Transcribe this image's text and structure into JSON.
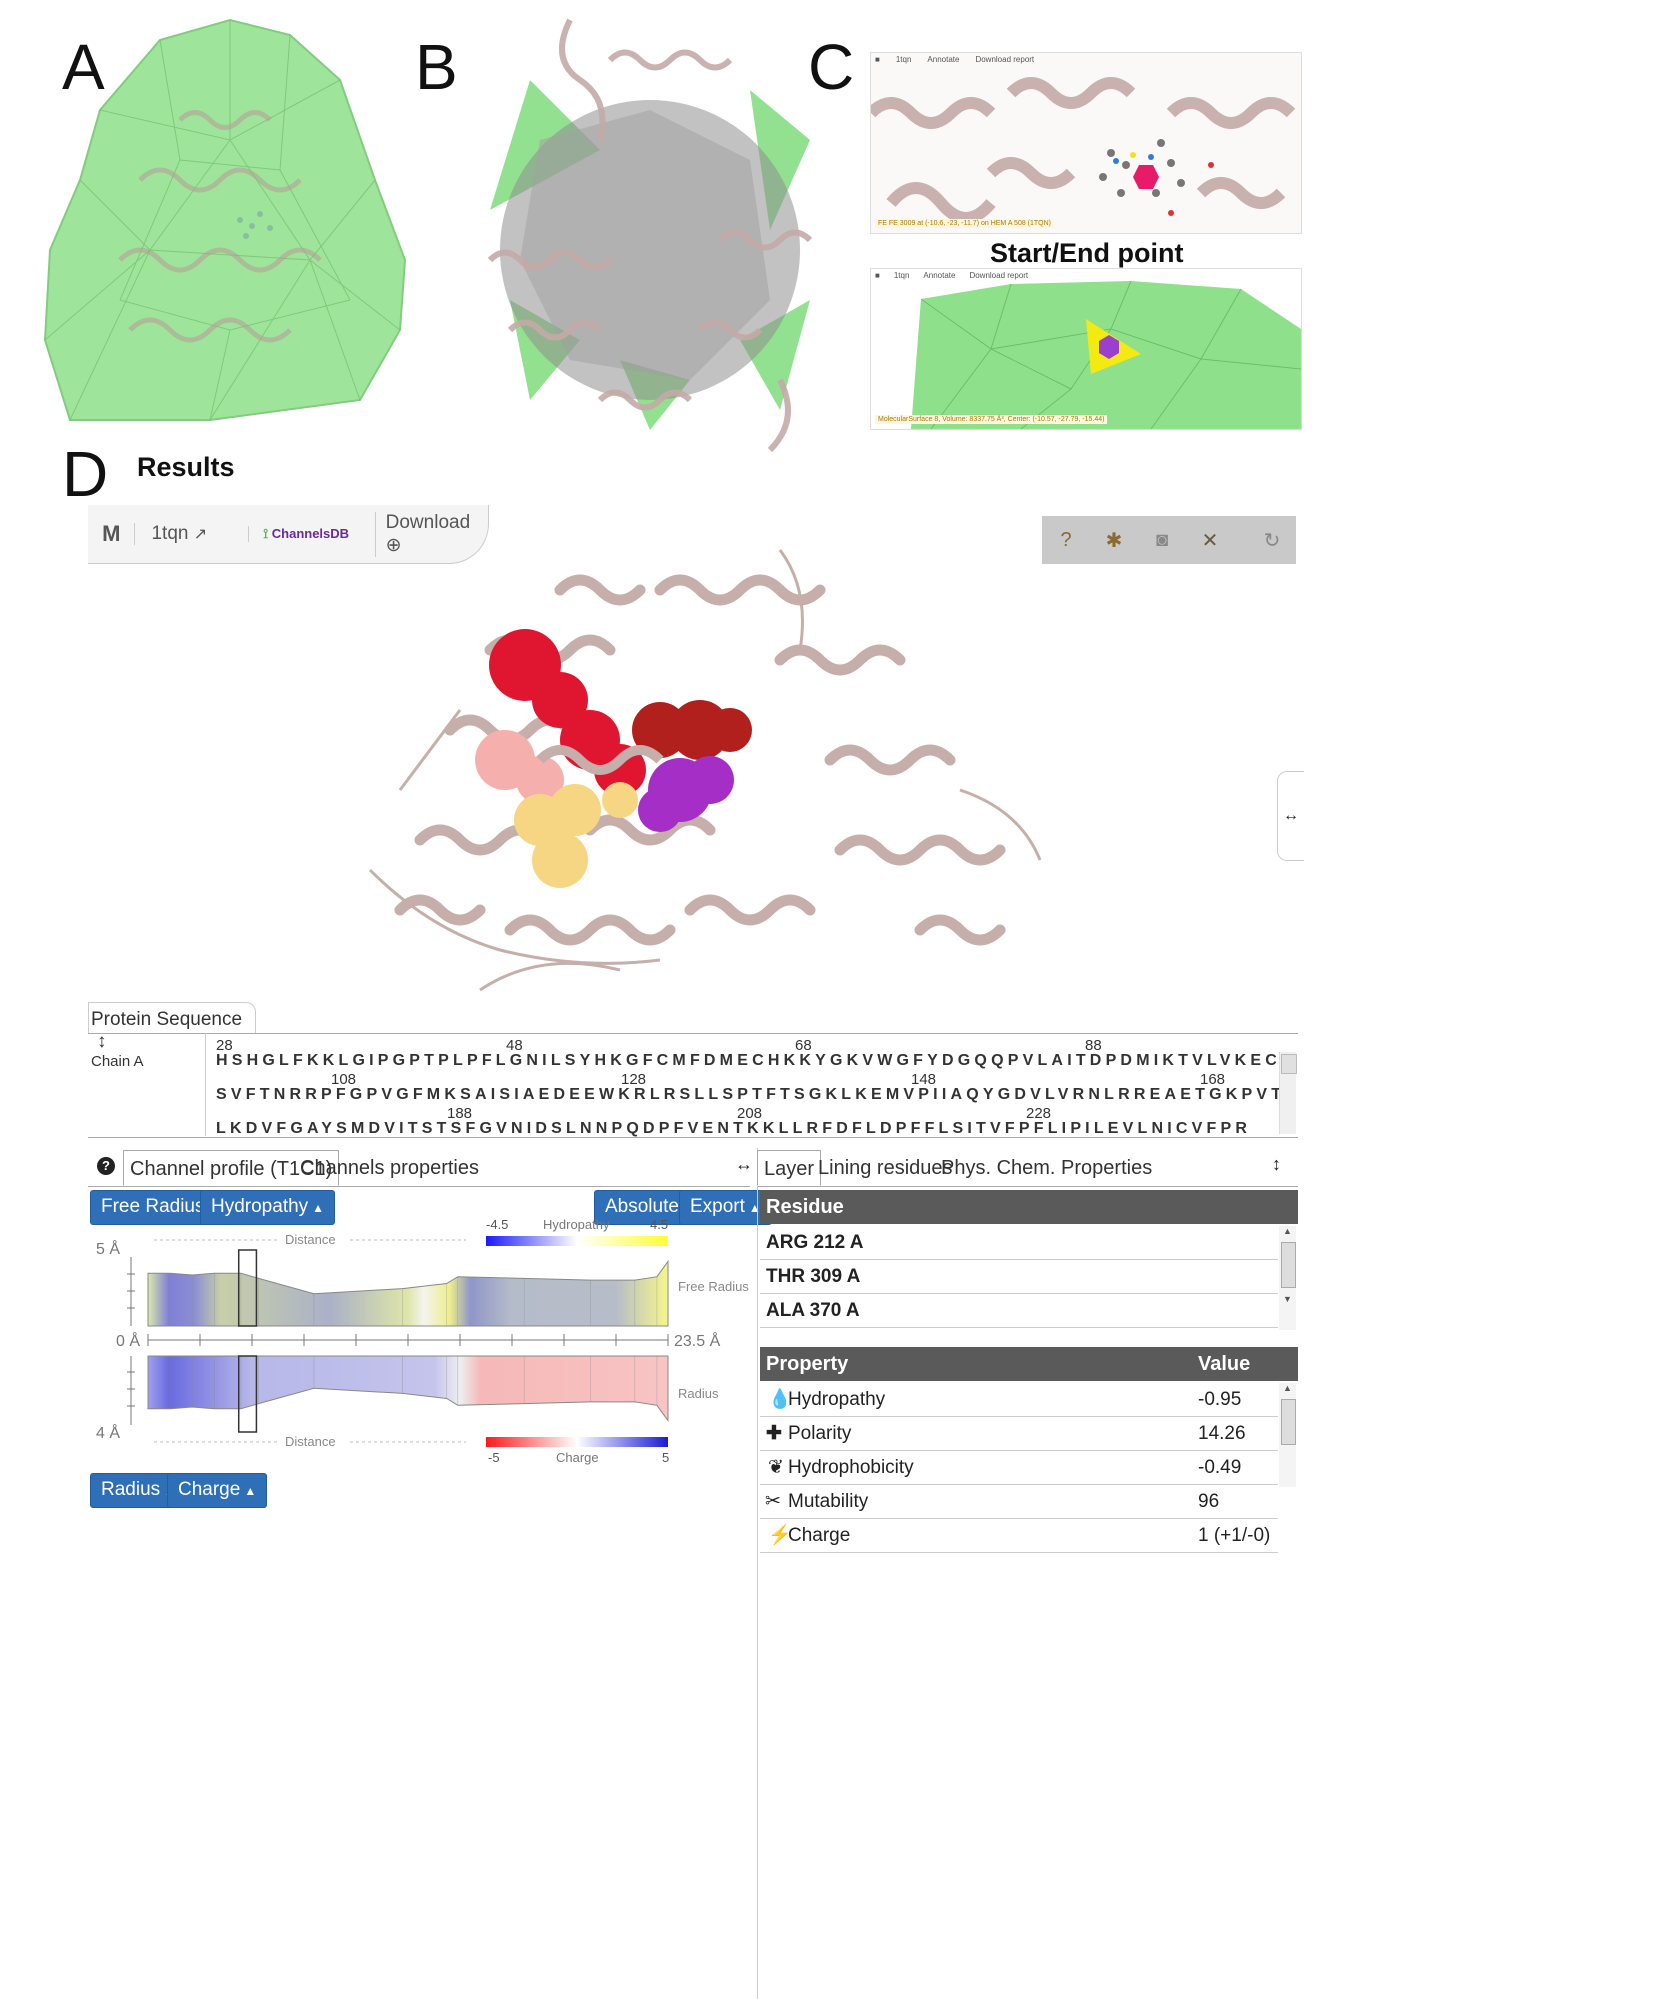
{
  "panels": {
    "a": "A",
    "b": "B",
    "c": "C",
    "d": "D",
    "c_caption": "Start/End point",
    "d_caption": "Results"
  },
  "c_top_toolbar": {
    "pdb": "1tqn",
    "annotate": "Annotate",
    "download": "Download report",
    "status": "FE FE 3009 at (-10.6, -23, -11.7) on HEM A 508 (1TQN)"
  },
  "c_bottom_toolbar": {
    "pdb": "1tqn",
    "annotate": "Annotate",
    "download": "Download report",
    "status": "MolecularSurface 8, Volume: 8337.75 Å³, Center: (-10.57, -27.79, -15.44)"
  },
  "viewer_toolbar": {
    "pdb": "1tqn",
    "channelsdb": "ChannelsDB",
    "download": "Download"
  },
  "viewer_icons": [
    "help-icon",
    "settings-icon",
    "camera-icon",
    "tools-icon",
    "fullscreen-icon",
    "reset-icon"
  ],
  "sequence": {
    "tab_label": "Protein Sequence",
    "chain_label": "Chain A",
    "lines": [
      {
        "numbers": [
          {
            "n": "28"
          },
          {
            "n": "48"
          },
          {
            "n": "68"
          },
          {
            "n": "88"
          }
        ],
        "seq": "HSHGLFKKLGIPGPTPLPFLGNILSYHKGFCMFDMECHKKYGKVWGFYDGQQPVLAITDPDMIKTVLVKECY"
      },
      {
        "numbers": [
          {
            "n": "108"
          },
          {
            "n": "128"
          },
          {
            "n": "148"
          },
          {
            "n": "168"
          }
        ],
        "seq": "SVFTNRRPFGPVGFMKSAISIAEDEEWKRLRSLLSPTFTSGKLKEMVPIIAQYGDVLVRNLRREAETGKPVT"
      },
      {
        "numbers": [
          {
            "n": "188"
          },
          {
            "n": "208"
          },
          {
            "n": "228"
          }
        ],
        "seq": "LKDVFGAYSMDVITSTSFGVNIDSLNNPQDPFVENTKKLLRFDFLDPFFLSITVFPFLIPILEVLNICVFPR"
      }
    ]
  },
  "left_tabs": {
    "channel_profile": "Channel profile (T1C1)",
    "channels_properties": "Channels properties"
  },
  "profile_buttons": {
    "free_radius": "Free Radius",
    "hydropathy": "Hydropathy",
    "absolute": "Absolute",
    "export": "Export",
    "radius": "Radius",
    "charge": "Charge"
  },
  "chart_data": {
    "type": "area",
    "title": "",
    "xlabel": "Distance",
    "x_range": [
      0,
      23.5
    ],
    "x_ticks": [
      "0 Å",
      "23.5 Å"
    ],
    "upper_ylabel": "5 Å",
    "lower_ylabel": "4 Å",
    "upper_series_label": "Free Radius",
    "lower_series_label": "Radius",
    "hydropathy_scale": {
      "label": "Hydropathy",
      "min": "-4.5",
      "max": "4.5",
      "min_color": "#1a1aff",
      "max_color": "#ffff33"
    },
    "charge_scale": {
      "label": "Charge",
      "min": "-5",
      "max": "5",
      "min_color": "#ff1a1a",
      "max_color": "#1a1ad6"
    },
    "upper_free_radius": {
      "x": [
        0,
        1,
        2,
        3,
        4.2,
        5,
        7.5,
        11.5,
        13.5,
        14,
        17,
        20,
        22,
        23,
        23.5
      ],
      "y": [
        1.55,
        1.55,
        1.5,
        1.55,
        1.55,
        1.4,
        0.95,
        1.1,
        1.25,
        1.45,
        1.4,
        1.35,
        1.35,
        1.45,
        1.9
      ]
    },
    "lower_radius": {
      "x": [
        0,
        1,
        2,
        3,
        4.2,
        5,
        7.5,
        11.5,
        13.5,
        14,
        17,
        20,
        22,
        23,
        23.5
      ],
      "y": [
        1.55,
        1.55,
        1.5,
        1.55,
        1.55,
        1.4,
        0.95,
        1.1,
        1.25,
        1.45,
        1.4,
        1.35,
        1.35,
        1.45,
        1.9
      ]
    },
    "highlight_x": [
      4.1,
      4.9
    ],
    "grid": true
  },
  "right_tabs": {
    "layer": "Layer",
    "lining": "Lining residues",
    "physchem": "Phys. Chem. Properties"
  },
  "residue_table": {
    "header": "Residue",
    "rows": [
      "ARG 212 A",
      "THR 309 A",
      "ALA 370 A"
    ]
  },
  "property_table": {
    "header_property": "Property",
    "header_value": "Value",
    "rows": [
      {
        "icon": "drop-icon",
        "name": "Hydropathy",
        "value": "-0.95"
      },
      {
        "icon": "plus-icon",
        "name": "Polarity",
        "value": "14.26"
      },
      {
        "icon": "tint-icon",
        "name": "Hydrophobicity",
        "value": "-0.49"
      },
      {
        "icon": "scissors-icon",
        "name": "Mutability",
        "value": "96"
      },
      {
        "icon": "bolt-icon",
        "name": "Charge",
        "value": "1 (+1/-0)"
      }
    ]
  },
  "colors": {
    "surface_green": "#8fe08a",
    "ribbon": "#c8b2b0",
    "button_blue": "#2f6fb7",
    "table_header": "#5a5a5a"
  }
}
